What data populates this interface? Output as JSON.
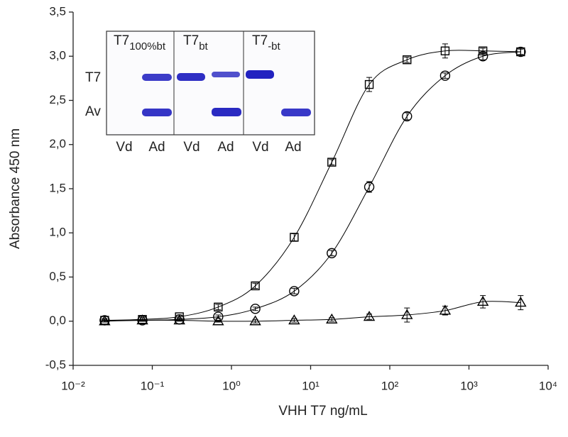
{
  "chart_data": {
    "type": "scatter",
    "xlabel": "VHH T7 ng/mL",
    "ylabel": "Absorbance 450 nm",
    "log_x": true,
    "x": [
      0.025,
      0.075,
      0.22,
      0.68,
      2.0,
      6.2,
      18.5,
      55,
      165,
      500,
      1500,
      4500
    ],
    "series": [
      {
        "marker": "square",
        "color": "#000000",
        "values": [
          0.01,
          0.02,
          0.05,
          0.16,
          0.4,
          0.95,
          1.8,
          2.68,
          2.96,
          3.06,
          3.06,
          3.05
        ],
        "errors": [
          0.02,
          0.02,
          0.02,
          0.03,
          0.03,
          0.04,
          0.03,
          0.08,
          0.03,
          0.08,
          0.03,
          0.03
        ]
      },
      {
        "marker": "circle",
        "color": "#000000",
        "values": [
          0.01,
          0.01,
          0.02,
          0.05,
          0.14,
          0.34,
          0.77,
          1.52,
          2.32,
          2.78,
          3.0,
          3.05
        ],
        "errors": [
          0.01,
          0.01,
          0.01,
          0.02,
          0.02,
          0.03,
          0.03,
          0.06,
          0.04,
          0.03,
          0.04,
          0.04
        ]
      },
      {
        "marker": "triangle",
        "color": "#000000",
        "values": [
          0.0,
          0.01,
          0.01,
          0.0,
          0.0,
          0.01,
          0.02,
          0.05,
          0.07,
          0.12,
          0.22,
          0.21
        ],
        "errors": [
          0.01,
          0.01,
          0.01,
          0.01,
          0.02,
          0.02,
          0.02,
          0.03,
          0.08,
          0.05,
          0.07,
          0.08
        ]
      }
    ],
    "xlim": [
      0.01,
      10000
    ],
    "xticks": [
      {
        "value": 0.01,
        "label": "10⁻²"
      },
      {
        "value": 0.1,
        "label": "10⁻¹"
      },
      {
        "value": 1,
        "label": "10⁰"
      },
      {
        "value": 10,
        "label": "10¹"
      },
      {
        "value": 100,
        "label": "10²"
      },
      {
        "value": 1000,
        "label": "10³"
      },
      {
        "value": 10000,
        "label": "10⁴"
      }
    ],
    "ylim": [
      -0.5,
      3.5
    ],
    "yticks": [
      {
        "value": -0.5,
        "label": "-0,5"
      },
      {
        "value": 0,
        "label": "0,0"
      },
      {
        "value": 0.5,
        "label": "0,5"
      },
      {
        "value": 1,
        "label": "1,0"
      },
      {
        "value": 1.5,
        "label": "1,5"
      },
      {
        "value": 2,
        "label": "2,0"
      },
      {
        "value": 2.5,
        "label": "2,5"
      },
      {
        "value": 3,
        "label": "3,0"
      },
      {
        "value": 3.5,
        "label": "3,5"
      }
    ]
  },
  "inset": {
    "row_labels": [
      "T7",
      "Av"
    ],
    "lanes": [
      {
        "title": "T7",
        "subscript": "100%bt"
      },
      {
        "title": "T7",
        "subscript": "bt"
      },
      {
        "title": "T7",
        "subscript": "-bt"
      }
    ],
    "lane_labels": [
      "Vd",
      "Ad",
      "Vd",
      "Ad",
      "Vd",
      "Ad"
    ]
  }
}
